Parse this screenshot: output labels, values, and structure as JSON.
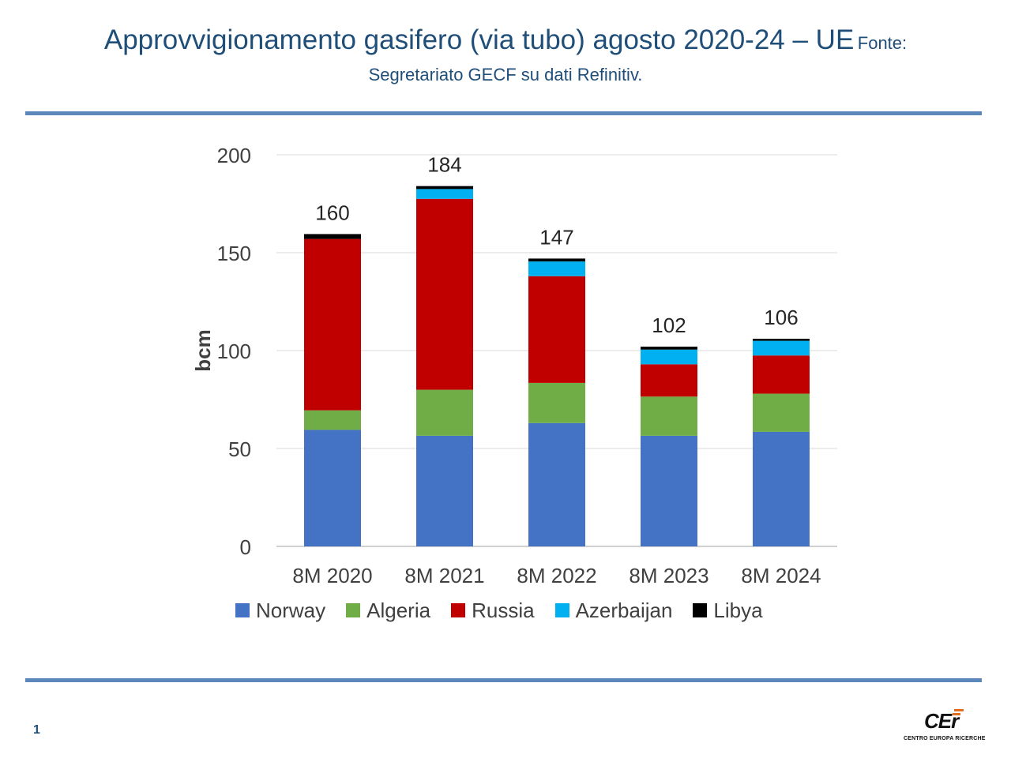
{
  "header": {
    "title": "Approvvigionamento gasifero (via tubo) agosto 2020-24 – UE",
    "source_prefix": "Fonte:",
    "source_rest": "Segretariato GECF su dati Refinitiv."
  },
  "colors": {
    "accent": "#1f4e79",
    "rule": "#5b87ba"
  },
  "chart_data": {
    "type": "bar",
    "stacked": true,
    "title": "",
    "xlabel": "",
    "ylabel": "bcm",
    "ylim": [
      0,
      200
    ],
    "yticks": [
      0,
      50,
      100,
      150,
      200
    ],
    "grid": true,
    "legend_position": "bottom",
    "categories": [
      "8M 2020",
      "8M 2021",
      "8M 2022",
      "8M 2023",
      "8M 2024"
    ],
    "series": [
      {
        "name": "Norway",
        "color": "#4472c4",
        "values": [
          59.5,
          56.5,
          63,
          56.5,
          58.5
        ]
      },
      {
        "name": "Algeria",
        "color": "#70ad47",
        "values": [
          10,
          23.5,
          20.5,
          20,
          19.5
        ]
      },
      {
        "name": "Russia",
        "color": "#c00000",
        "values": [
          87.5,
          97.5,
          54.5,
          16.5,
          19.5
        ]
      },
      {
        "name": "Azerbaijan",
        "color": "#00b0f0",
        "values": [
          0,
          5,
          7.5,
          7.5,
          7.5
        ]
      },
      {
        "name": "Libya",
        "color": "#000000",
        "values": [
          2.5,
          1.5,
          1.5,
          1.5,
          1
        ]
      }
    ],
    "totals": [
      "160",
      "184",
      "147",
      "102",
      "106"
    ]
  },
  "footer": {
    "page_number": "1",
    "logo_mark": "CEr",
    "logo_text": "CENTRO EUROPA RICERCHE"
  }
}
